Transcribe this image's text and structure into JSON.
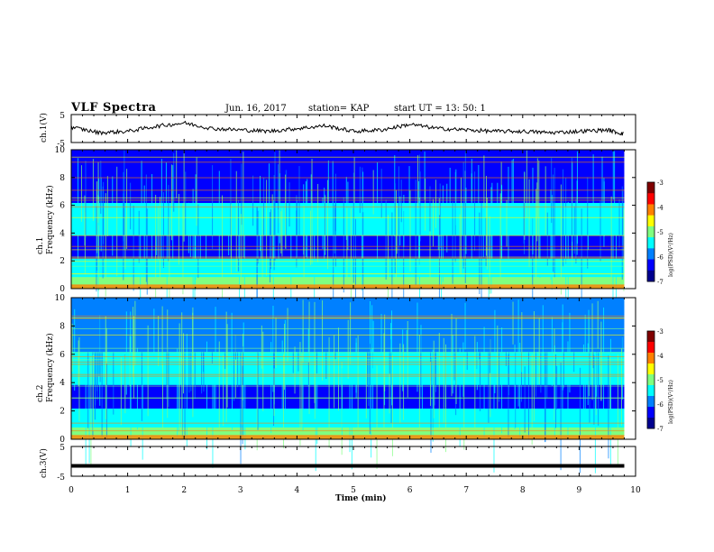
{
  "header": {
    "title": "VLF Spectra",
    "date": "Jun. 16, 2017",
    "station": "station= KAP",
    "start": "start  UT  =   13: 50: 1"
  },
  "colorbar": {
    "label": "log(PSD)(V²/Hz)",
    "ticks": [
      "-3",
      "-4",
      "-5",
      "-6",
      "-7"
    ]
  },
  "colors": {
    "spectrum": [
      "#00008f",
      "#0000ff",
      "#0080ff",
      "#00ffff",
      "#80ff80",
      "#ffff00",
      "#ff8000",
      "#ff0000",
      "#800000"
    ],
    "trace": "#000000"
  },
  "chart_data": [
    {
      "type": "line",
      "panel": "ch1-voltage",
      "ylabel": "ch.1(V)",
      "ylim": [
        -5,
        5
      ],
      "yticks": [
        "5",
        "-5"
      ],
      "xlim": [
        0,
        10
      ],
      "x_sample_min": [
        0,
        0.5,
        1,
        1.5,
        2,
        2.5,
        3,
        3.5,
        4,
        4.5,
        5,
        5.5,
        6,
        6.5,
        7,
        7.5,
        8,
        8.5,
        9,
        9.5,
        9.8
      ],
      "y_sample_V": [
        0.5,
        -1.5,
        -1,
        0.8,
        2,
        0,
        -0.5,
        -1,
        0,
        1,
        -1,
        -0.5,
        1.5,
        0,
        -0.5,
        -1,
        -1,
        -1.5,
        -1,
        -0.5,
        -2
      ]
    },
    {
      "type": "heatmap",
      "panel": "ch1-spectrogram",
      "ylabel": "ch.1\nFrequency (kHz)",
      "ylim": [
        0,
        10
      ],
      "yticks": [
        "0",
        "2",
        "4",
        "6",
        "8",
        "10"
      ],
      "xlim": [
        0,
        10
      ],
      "data_end_min": 9.8
    },
    {
      "type": "heatmap",
      "panel": "ch2-spectrogram",
      "ylabel": "ch.2\nFrequency (kHz)",
      "ylim": [
        0,
        10
      ],
      "yticks": [
        "0",
        "2",
        "4",
        "6",
        "8",
        "10"
      ],
      "xlim": [
        0,
        10
      ],
      "data_end_min": 9.8
    },
    {
      "type": "line",
      "panel": "ch3-voltage",
      "ylabel": "ch.3(V)",
      "ylim": [
        -5,
        5
      ],
      "yticks": [
        "5",
        "-5"
      ],
      "xlim": [
        0,
        10
      ],
      "x": [
        0,
        9.8
      ],
      "y": [
        -1.5,
        -1.5
      ]
    }
  ],
  "xaxis": {
    "label": "Time (min)",
    "ticks": [
      "0",
      "1",
      "2",
      "3",
      "4",
      "5",
      "6",
      "7",
      "8",
      "9",
      "10"
    ]
  }
}
